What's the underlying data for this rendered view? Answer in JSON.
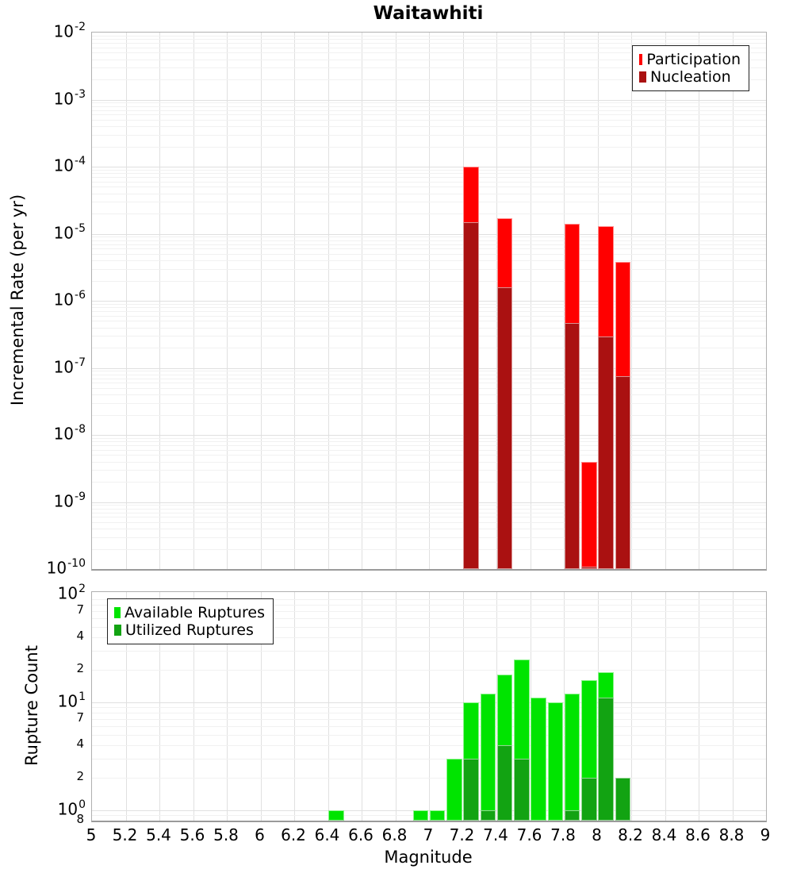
{
  "title": "Waitawhiti",
  "colors": {
    "participation": "#ff0000",
    "nucleation": "#aa1111",
    "available": "#00e400",
    "utilized": "#12a312",
    "grid_major": "#e0e0e0",
    "grid_minor": "#f1f1f1",
    "panel_border": "#b0b0b0",
    "text": "#000000"
  },
  "x_axis": {
    "label": "Magnitude",
    "min": 5,
    "max": 9,
    "tick_step": 0.2,
    "tick_labels": [
      "5",
      "5.2",
      "5.4",
      "5.6",
      "5.8",
      "6",
      "6.2",
      "6.4",
      "6.6",
      "6.8",
      "7",
      "7.2",
      "7.4",
      "7.6",
      "7.8",
      "8",
      "8.2",
      "8.4",
      "8.6",
      "8.8",
      "9"
    ]
  },
  "top_y_axis": {
    "scale": "log",
    "tick_exponents": [
      -2,
      -3,
      -4,
      -5,
      -6,
      -7,
      -8,
      -9,
      -10
    ]
  },
  "bottom_y_axis": {
    "scale": "log",
    "major_tick_exponents": [
      2,
      1,
      0
    ],
    "minor_tick_labels": [
      {
        "value": 70,
        "label": "7"
      },
      {
        "value": 40,
        "label": "4"
      },
      {
        "value": 20,
        "label": "2"
      },
      {
        "value": 7,
        "label": "7"
      },
      {
        "value": 4,
        "label": "4"
      },
      {
        "value": 2,
        "label": "2"
      },
      {
        "value": 0.8,
        "label": "8"
      }
    ]
  },
  "chart_data": [
    {
      "type": "bar",
      "panel": "top",
      "title": "Waitawhiti",
      "xlabel": "Magnitude",
      "ylabel": "Incremental Rate (per yr)",
      "y_scale": "log",
      "ylim": [
        1e-10,
        0.01
      ],
      "xlim": [
        5,
        9
      ],
      "bin_width": 0.1,
      "grid": true,
      "legend_position": "top-right",
      "categories": [
        7.25,
        7.45,
        7.85,
        7.95,
        8.05,
        8.15
      ],
      "series": [
        {
          "name": "Participation",
          "color_key": "participation",
          "values": [
            0.0001,
            1.7e-05,
            1.4e-05,
            4e-09,
            1.3e-05,
            3.8e-06
          ]
        },
        {
          "name": "Nucleation",
          "color_key": "nucleation",
          "values": [
            1.5e-05,
            1.6e-06,
            4.7e-07,
            1.1e-10,
            2.9e-07,
            7.5e-08
          ]
        }
      ]
    },
    {
      "type": "bar",
      "panel": "bottom",
      "xlabel": "Magnitude",
      "ylabel": "Rupture Count",
      "y_scale": "log",
      "ylim": [
        0.8,
        100
      ],
      "xlim": [
        5,
        9
      ],
      "bin_width": 0.1,
      "grid": true,
      "legend_position": "top-left",
      "categories": [
        6.45,
        6.95,
        7.05,
        7.15,
        7.25,
        7.35,
        7.45,
        7.55,
        7.65,
        7.75,
        7.85,
        7.95,
        8.05,
        8.15
      ],
      "series": [
        {
          "name": "Available Ruptures",
          "color_key": "available",
          "values": [
            1,
            1,
            1,
            3,
            10,
            12,
            18,
            25,
            11,
            10,
            12,
            16,
            19,
            2
          ]
        },
        {
          "name": "Utilized Ruptures",
          "color_key": "utilized",
          "values": [
            0,
            0,
            0,
            0,
            3,
            1,
            4,
            3,
            0,
            0,
            1,
            2,
            11,
            2
          ]
        }
      ]
    }
  ]
}
